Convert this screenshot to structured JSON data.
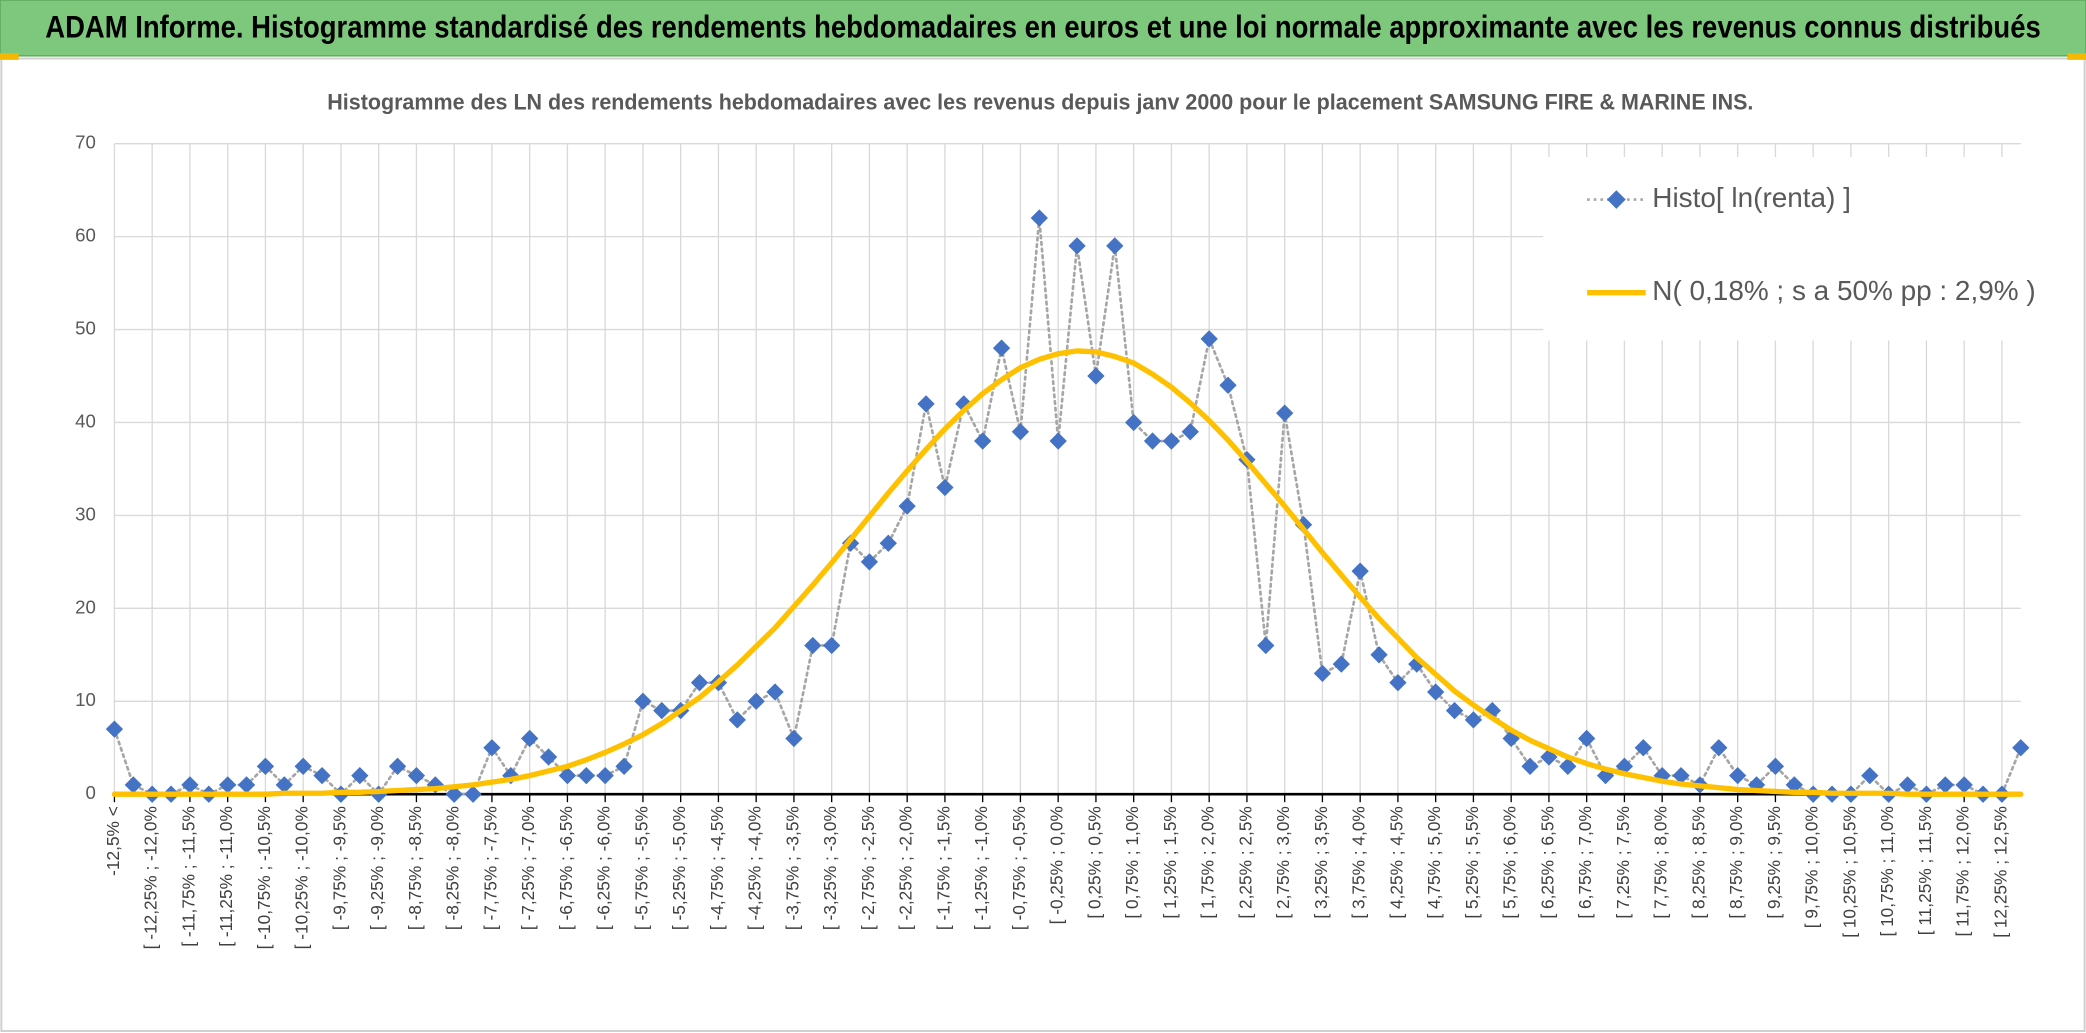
{
  "chart_data": {
    "type": "line",
    "title": "ADAM Informe. Histogramme standardisé des rendements hebdomadaires en euros et une loi normale approximante avec les revenus connus distribués",
    "subtitle": "Histogramme des LN des rendements hebdomadaires avec les revenus depuis janv 2000 pour le placement SAMSUNG FIRE & MARINE INS.",
    "categories": [
      "-12,5% <",
      null,
      "[ -12,25% ; -12,0%",
      null,
      "[ -11,75% ; -11,5%",
      null,
      "[ -11,25% ; -11,0%",
      null,
      "[ -10,75% ; -10,5%",
      null,
      "[ -10,25% ; -10,0%",
      null,
      "[ -9,75% ; -9,5%",
      null,
      "[ -9,25% ; -9,0%",
      null,
      "[ -8,75% ; -8,5%",
      null,
      "[ -8,25% ; -8,0%",
      null,
      "[ -7,75% ; -7,5%",
      null,
      "[ -7,25% ; -7,0%",
      null,
      "[ -6,75% ; -6,5%",
      null,
      "[ -6,25% ; -6,0%",
      null,
      "[ -5,75% ; -5,5%",
      null,
      "[ -5,25% ; -5,0%",
      null,
      "[ -4,75% ; -4,5%",
      null,
      "[ -4,25% ; -4,0%",
      null,
      "[ -3,75% ; -3,5%",
      null,
      "[ -3,25% ; -3,0%",
      null,
      "[ -2,75% ; -2,5%",
      null,
      "[ -2,25% ; -2,0%",
      null,
      "[ -1,75% ; -1,5%",
      null,
      "[ -1,25% ; -1,0%",
      null,
      "[ -0,75% ; -0,5%",
      null,
      "[ -0,25% ; 0,0%",
      null,
      "[ 0,25% ; 0,5%",
      null,
      "[ 0,75% ; 1,0%",
      null,
      "[ 1,25% ; 1,5%",
      null,
      "[ 1,75% ; 2,0%",
      null,
      "[ 2,25% ; 2,5%",
      null,
      "[ 2,75% ; 3,0%",
      null,
      "[ 3,25% ; 3,5%",
      null,
      "[ 3,75% ; 4,0%",
      null,
      "[ 4,25% ; 4,5%",
      null,
      "[ 4,75% ; 5,0%",
      null,
      "[ 5,25% ; 5,5%",
      null,
      "[ 5,75% ; 6,0%",
      null,
      "[ 6,25% ; 6,5%",
      null,
      "[ 6,75% ; 7,0%",
      null,
      "[ 7,25% ; 7,5%",
      null,
      "[ 7,75% ; 8,0%",
      null,
      "[ 8,25% ; 8,5%",
      null,
      "[ 8,75% ; 9,0%",
      null,
      "[ 9,25% ; 9,5%",
      null,
      "[ 9,75% ; 10,0%",
      null,
      "[ 10,25% ; 10,5%",
      null,
      "[ 10,75% ; 11,0%",
      null,
      "[ 11,25% ; 11,5%",
      null,
      "[ 11,75% ; 12,0%",
      null,
      "[ 12,25% ; 12,5%",
      null
    ],
    "series": [
      {
        "name": "Histo[ ln(renta) ]",
        "color": "#4472c4",
        "line_color": "#a6a6a6",
        "line_style": "dotted",
        "marker": "diamond",
        "values": [
          7,
          1,
          0,
          0,
          1,
          0,
          1,
          1,
          3,
          1,
          3,
          2,
          0,
          2,
          0,
          3,
          2,
          1,
          0,
          0,
          5,
          2,
          6,
          4,
          2,
          2,
          2,
          3,
          10,
          9,
          9,
          12,
          12,
          8,
          10,
          11,
          6,
          16,
          16,
          27,
          25,
          27,
          31,
          42,
          33,
          42,
          38,
          48,
          39,
          62,
          38,
          59,
          45,
          59,
          40,
          38,
          38,
          39,
          49,
          44,
          36,
          16,
          41,
          29,
          13,
          14,
          24,
          15,
          12,
          14,
          11,
          9,
          8,
          9,
          6,
          3,
          4,
          3,
          6,
          2,
          3,
          5,
          2,
          2,
          1,
          5,
          2,
          1,
          3,
          1,
          0,
          0,
          0,
          2,
          0,
          1,
          0,
          1,
          1,
          0,
          0,
          5
        ]
      },
      {
        "name": "N( 0,18% ; s a 50% pp : 2,9% )",
        "color": "#ffc000",
        "line_style": "solid",
        "marker": "none",
        "values": [
          0,
          0,
          0,
          0,
          0,
          0,
          0,
          0,
          0,
          0.1,
          0.1,
          0.1,
          0.2,
          0.2,
          0.3,
          0.4,
          0.5,
          0.6,
          0.8,
          1.0,
          1.3,
          1.6,
          2.0,
          2.5,
          3.0,
          3.7,
          4.5,
          5.4,
          6.4,
          7.6,
          9.0,
          10.4,
          12.1,
          13.9,
          15.9,
          17.9,
          20.2,
          22.5,
          24.9,
          27.4,
          29.9,
          32.4,
          34.8,
          37.1,
          39.3,
          41.3,
          43.1,
          44.6,
          45.9,
          46.8,
          47.4,
          47.7,
          47.6,
          47.1,
          46.4,
          45.2,
          43.8,
          42.1,
          40.2,
          38.1,
          35.8,
          33.4,
          31.0,
          28.5,
          26.0,
          23.6,
          21.2,
          18.9,
          16.8,
          14.7,
          12.9,
          11.1,
          9.6,
          8.2,
          6.9,
          5.8,
          4.9,
          4.0,
          3.3,
          2.7,
          2.2,
          1.8,
          1.4,
          1.1,
          0.9,
          0.7,
          0.5,
          0.4,
          0.3,
          0.2,
          0.2,
          0.1,
          0.1,
          0.1,
          0.1,
          0,
          0,
          0,
          0,
          0,
          0,
          0
        ]
      }
    ],
    "ylim": [
      0,
      70
    ],
    "yticks": [
      0,
      10,
      20,
      30,
      40,
      50,
      60,
      70
    ],
    "grid": true,
    "legend": "upper right"
  }
}
